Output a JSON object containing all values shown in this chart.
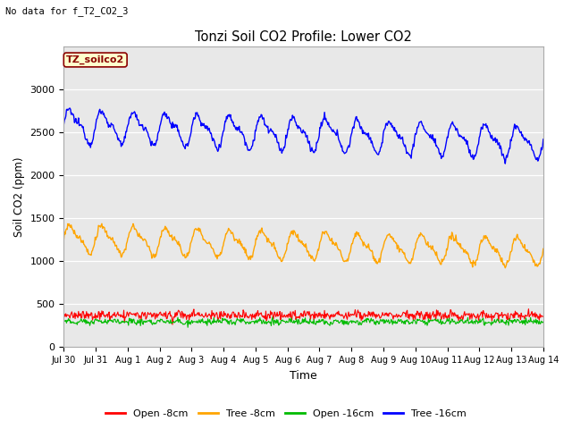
{
  "title": "Tonzi Soil CO2 Profile: Lower CO2",
  "subtitle": "No data for f_T2_CO2_3",
  "ylabel": "Soil CO2 (ppm)",
  "xlabel": "Time",
  "legend_label": "TZ_soilco2",
  "series_labels": [
    "Open -8cm",
    "Tree -8cm",
    "Open -16cm",
    "Tree -16cm"
  ],
  "series_colors": [
    "#ff0000",
    "#ffa500",
    "#00bb00",
    "#0000ff"
  ],
  "ylim": [
    0,
    3500
  ],
  "yticks": [
    0,
    500,
    1000,
    1500,
    2000,
    2500,
    3000
  ],
  "background_color": "#e8e8e8",
  "n_days": 15,
  "xtick_labels": [
    "Jul 30",
    "Jul 31",
    "Aug 1",
    "Aug 2",
    "Aug 3",
    "Aug 4",
    "Aug 5",
    "Aug 6",
    "Aug 7",
    "Aug 8",
    "Aug 9",
    "Aug 10",
    "Aug 11",
    "Aug 12",
    "Aug 13",
    "Aug 14"
  ],
  "tree16_base": 2580,
  "tree16_amp": 160,
  "tree16_trend": -200,
  "tree8_base": 1260,
  "tree8_amp": 140,
  "tree8_trend": -150,
  "open8_base": 370,
  "open8_noise": 25,
  "open16_base": 295,
  "open16_noise": 18
}
